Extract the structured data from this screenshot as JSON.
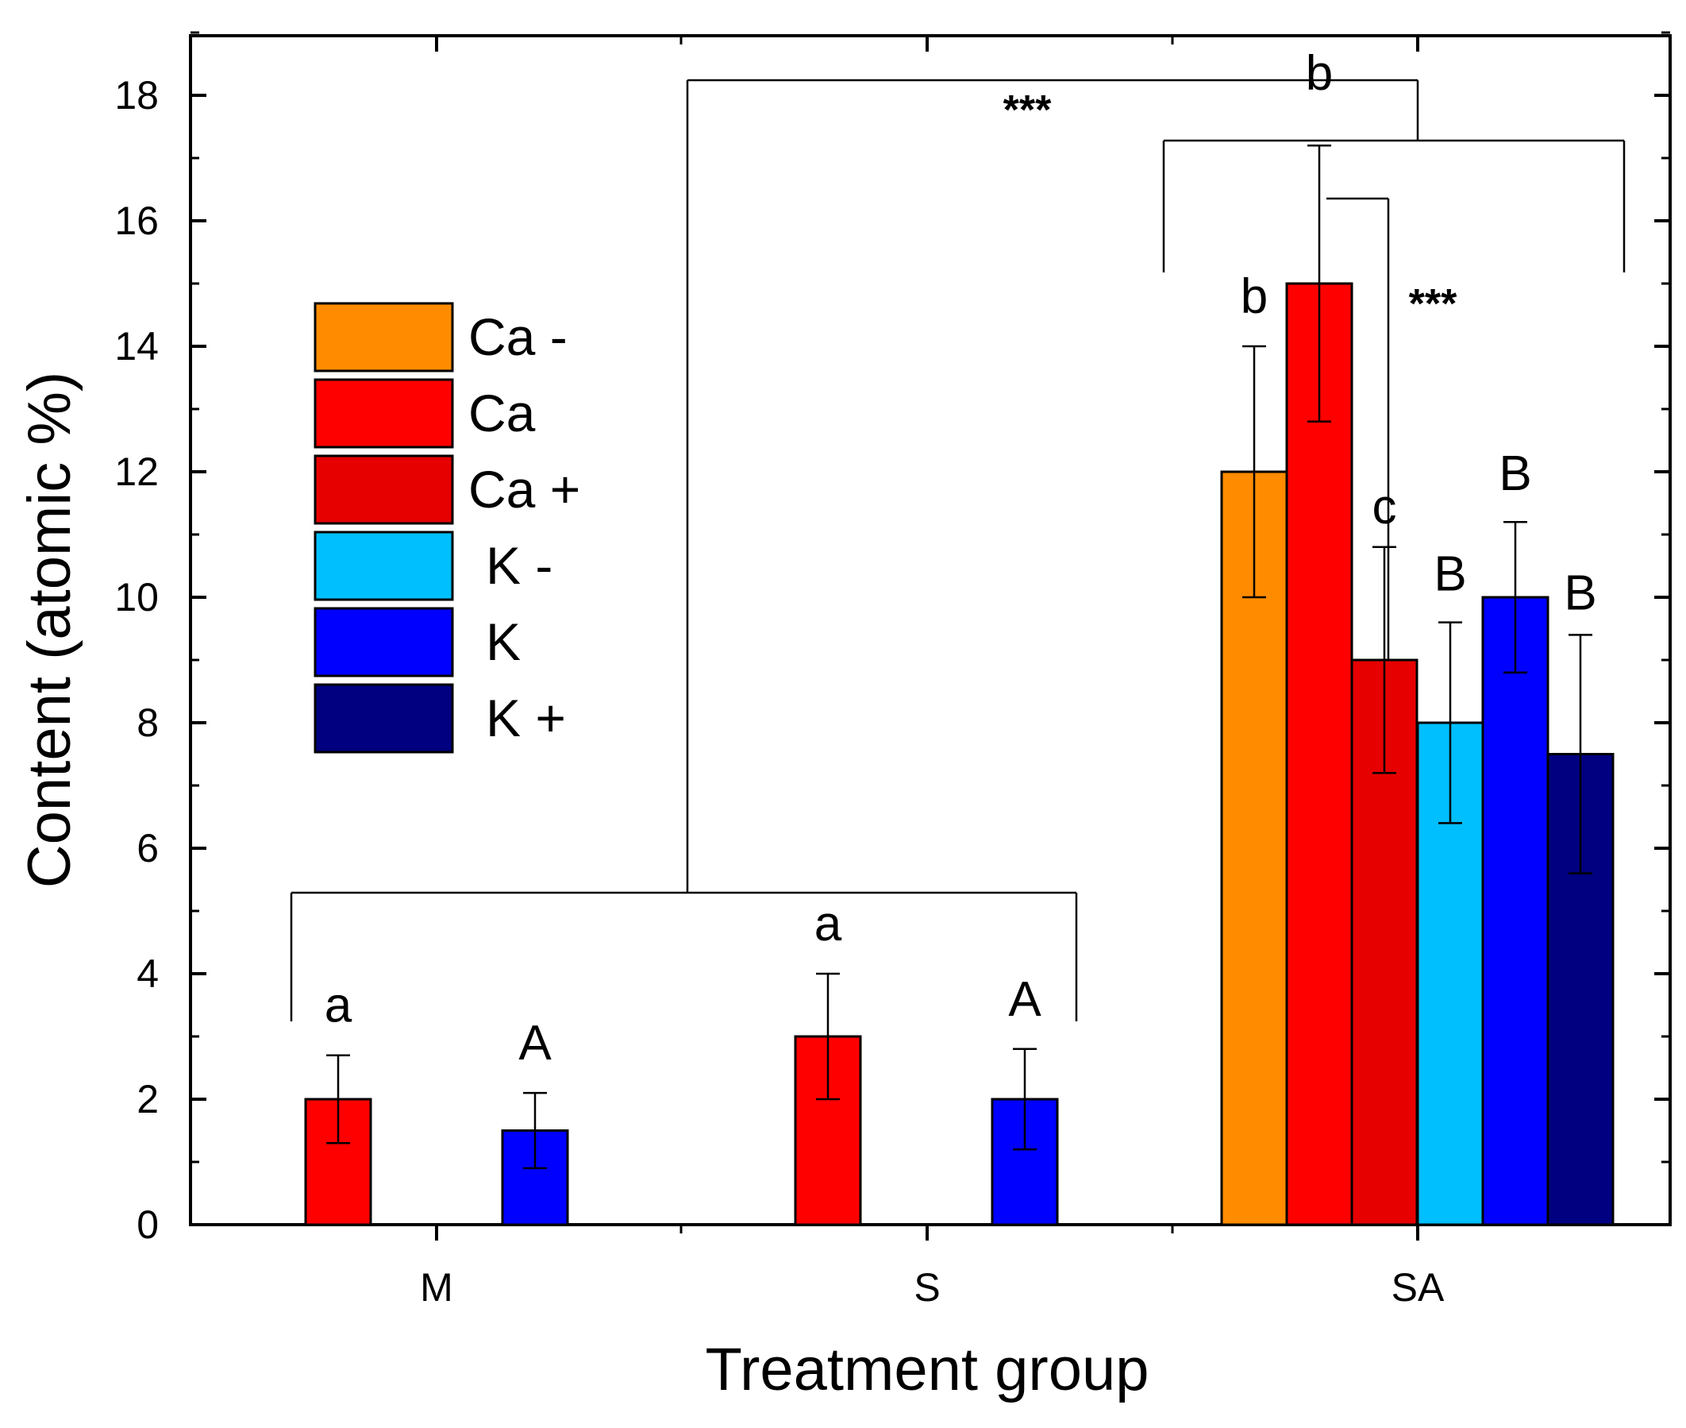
{
  "chart_data": {
    "type": "bar",
    "xlabel": "Treatment group",
    "ylabel": "Content (atomic %)",
    "ylim": [
      0,
      19
    ],
    "yticks": [
      "0",
      "2",
      "4",
      "6",
      "8",
      "10",
      "12",
      "14",
      "16",
      "18"
    ],
    "categories": [
      "M",
      "S",
      "SA"
    ],
    "legend": {
      "placement": "upper-left",
      "entries": [
        "Ca -",
        "Ca",
        "Ca +",
        "K -",
        "K",
        "K +"
      ]
    },
    "series": [
      {
        "key": "ca_minus",
        "name": "Ca -",
        "color": "#FF8C00",
        "values": [
          null,
          null,
          12
        ],
        "errors": [
          null,
          null,
          2
        ]
      },
      {
        "key": "ca",
        "name": "Ca",
        "color": "#FF0000",
        "values": [
          2,
          3,
          15
        ],
        "errors": [
          0.7,
          1,
          2.2
        ]
      },
      {
        "key": "ca_plus",
        "name": "Ca +",
        "color": "#E60000",
        "values": [
          null,
          null,
          9
        ],
        "errors": [
          null,
          null,
          1.8
        ]
      },
      {
        "key": "k_minus",
        "name": "K -",
        "color": "#00BFFF",
        "values": [
          null,
          null,
          8
        ],
        "errors": [
          null,
          null,
          1.6
        ]
      },
      {
        "key": "k",
        "name": "K",
        "color": "#0000FF",
        "values": [
          1.5,
          2,
          10
        ],
        "errors": [
          0.6,
          0.8,
          1.2
        ]
      },
      {
        "key": "k_plus",
        "name": "K +",
        "color": "#000080",
        "values": [
          null,
          null,
          7.5
        ],
        "errors": [
          null,
          null,
          1.9
        ]
      }
    ],
    "significance_letters": [
      {
        "group": "M",
        "series": "Ca",
        "label": "a"
      },
      {
        "group": "M",
        "series": "K",
        "label": "A"
      },
      {
        "group": "S",
        "series": "Ca",
        "label": "a"
      },
      {
        "group": "S",
        "series": "K",
        "label": "A"
      },
      {
        "group": "SA",
        "series": "Ca -",
        "label": "b"
      },
      {
        "group": "SA",
        "series": "Ca",
        "label": "b"
      },
      {
        "group": "SA",
        "series": "Ca +",
        "label": "c"
      },
      {
        "group": "SA",
        "series": "K -",
        "label": "B"
      },
      {
        "group": "SA",
        "series": "K",
        "label": "B"
      },
      {
        "group": "SA",
        "series": "K +",
        "label": "B"
      }
    ],
    "comparison_brackets": [
      {
        "between": "M,S vs SA",
        "label": "***"
      },
      {
        "between": "SA Ca vs SA Ca +",
        "label": "***"
      }
    ]
  }
}
